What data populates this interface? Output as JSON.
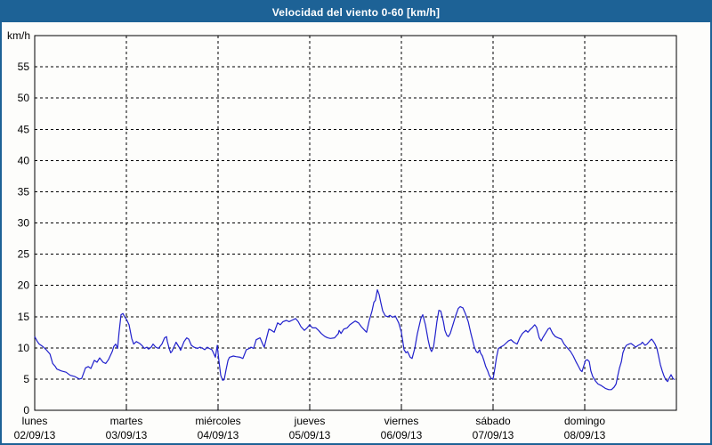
{
  "title": "Velocidad del viento 0-60 [km/h]",
  "colors": {
    "frame_blue": "#1d6296",
    "title_text": "#ffffff",
    "plot_background": "#fdfdfb",
    "grid": "#000000",
    "line_blue": "#2020cc"
  },
  "chart_data": {
    "type": "line",
    "title": "Velocidad del viento 0-60 [km/h]",
    "ylabel_unit": "km/h",
    "ylim": [
      0,
      60
    ],
    "yticks": [
      0,
      5,
      10,
      15,
      20,
      25,
      30,
      35,
      40,
      45,
      50,
      55
    ],
    "grid": "dashed, horizontal at every 5 km/h and vertical at each day boundary",
    "legend_position": "none",
    "x_axis_note": "7 days, x expressed in hours 0-168 starting lunes 02/09/13 00:00",
    "days": [
      {
        "name": "lunes",
        "date": "02/09/13"
      },
      {
        "name": "martes",
        "date": "03/09/13"
      },
      {
        "name": "miércoles",
        "date": "04/09/13"
      },
      {
        "name": "jueves",
        "date": "05/09/13"
      },
      {
        "name": "viernes",
        "date": "06/09/13"
      },
      {
        "name": "sábado",
        "date": "07/09/13"
      },
      {
        "name": "domingo",
        "date": "08/09/13"
      }
    ],
    "series": [
      {
        "name": "Velocidad del viento",
        "color": "#2020cc",
        "points_hours_kmh": [
          [
            0,
            11.8
          ],
          [
            0.7,
            11.0
          ],
          [
            1.2,
            10.6
          ],
          [
            1.9,
            10.3
          ],
          [
            2.3,
            10.1
          ],
          [
            3,
            9.7
          ],
          [
            4,
            9.0
          ],
          [
            4.7,
            7.5
          ],
          [
            5.4,
            7.0
          ],
          [
            5.8,
            6.6
          ],
          [
            7,
            6.3
          ],
          [
            8.2,
            6.1
          ],
          [
            9.3,
            5.6
          ],
          [
            10.5,
            5.4
          ],
          [
            11.7,
            5.0
          ],
          [
            12.3,
            5.1
          ],
          [
            13.3,
            6.8
          ],
          [
            14,
            7.0
          ],
          [
            14.7,
            6.7
          ],
          [
            15.6,
            8.0
          ],
          [
            16.3,
            7.7
          ],
          [
            17,
            8.4
          ],
          [
            17.9,
            7.7
          ],
          [
            18.6,
            7.5
          ],
          [
            19.3,
            8.1
          ],
          [
            20.3,
            9.4
          ],
          [
            20.7,
            10.2
          ],
          [
            21.2,
            10.6
          ],
          [
            21.7,
            9.9
          ],
          [
            22.1,
            12.5
          ],
          [
            22.6,
            15.3
          ],
          [
            23.1,
            15.5
          ],
          [
            23.5,
            15.0
          ],
          [
            24,
            14.6
          ],
          [
            24.7,
            13.7
          ],
          [
            25.4,
            11.5
          ],
          [
            25.9,
            10.6
          ],
          [
            26.6,
            11.0
          ],
          [
            27.5,
            10.7
          ],
          [
            28.2,
            10.3
          ],
          [
            28.7,
            9.9
          ],
          [
            29.4,
            10.1
          ],
          [
            29.8,
            9.8
          ],
          [
            30.5,
            10.1
          ],
          [
            31,
            10.6
          ],
          [
            31.7,
            10.1
          ],
          [
            32.4,
            9.9
          ],
          [
            33.3,
            10.6
          ],
          [
            34,
            11.6
          ],
          [
            34.5,
            11.8
          ],
          [
            34.7,
            11.1
          ],
          [
            35.2,
            9.9
          ],
          [
            35.6,
            9.2
          ],
          [
            35.9,
            9.4
          ],
          [
            36.8,
            10.6
          ],
          [
            37,
            10.9
          ],
          [
            38,
            9.9
          ],
          [
            38.2,
            9.6
          ],
          [
            39.1,
            11.0
          ],
          [
            39.8,
            11.6
          ],
          [
            40.3,
            11.4
          ],
          [
            41,
            10.4
          ],
          [
            41.7,
            10.1
          ],
          [
            42.6,
            9.9
          ],
          [
            43.3,
            10.1
          ],
          [
            44,
            9.9
          ],
          [
            44.5,
            9.7
          ],
          [
            45.2,
            10.1
          ],
          [
            45.7,
            9.9
          ],
          [
            46.4,
            9.7
          ],
          [
            46.8,
            9.2
          ],
          [
            47.3,
            8.5
          ],
          [
            47.8,
            10.4
          ],
          [
            48.2,
            8.0
          ],
          [
            48.7,
            5.6
          ],
          [
            49.2,
            4.8
          ],
          [
            49.6,
            4.9
          ],
          [
            50.1,
            6.5
          ],
          [
            50.6,
            8.0
          ],
          [
            51,
            8.5
          ],
          [
            52,
            8.7
          ],
          [
            52.7,
            8.6
          ],
          [
            53.8,
            8.5
          ],
          [
            54.5,
            8.3
          ],
          [
            55.4,
            9.7
          ],
          [
            56.2,
            9.9
          ],
          [
            56.6,
            10.1
          ],
          [
            57.3,
            9.9
          ],
          [
            58,
            11.3
          ],
          [
            59,
            11.6
          ],
          [
            59.7,
            10.6
          ],
          [
            60.1,
            10.1
          ],
          [
            60.8,
            11.8
          ],
          [
            61.3,
            13.0
          ],
          [
            62,
            12.8
          ],
          [
            62.7,
            12.5
          ],
          [
            63.6,
            14.0
          ],
          [
            64.3,
            13.7
          ],
          [
            65,
            14.2
          ],
          [
            65.9,
            14.4
          ],
          [
            66.6,
            14.2
          ],
          [
            67.3,
            14.4
          ],
          [
            68.3,
            14.7
          ],
          [
            69,
            14.2
          ],
          [
            69.7,
            13.4
          ],
          [
            70.6,
            12.8
          ],
          [
            71.3,
            13.2
          ],
          [
            72,
            13.7
          ],
          [
            72.7,
            13.2
          ],
          [
            73.6,
            13.2
          ],
          [
            74.3,
            12.8
          ],
          [
            75,
            12.3
          ],
          [
            76,
            11.8
          ],
          [
            76.7,
            11.6
          ],
          [
            77.4,
            11.5
          ],
          [
            78.5,
            11.6
          ],
          [
            79.5,
            12.3
          ],
          [
            79.7,
            12.8
          ],
          [
            80.2,
            12.3
          ],
          [
            80.9,
            13.0
          ],
          [
            81.8,
            13.2
          ],
          [
            82.5,
            13.7
          ],
          [
            83.2,
            14.0
          ],
          [
            83.9,
            14.3
          ],
          [
            84.8,
            14.0
          ],
          [
            85.5,
            13.4
          ],
          [
            86.4,
            12.8
          ],
          [
            86.9,
            12.5
          ],
          [
            87.6,
            14.4
          ],
          [
            88.3,
            15.9
          ],
          [
            88.8,
            17.3
          ],
          [
            89.2,
            17.6
          ],
          [
            89.7,
            19.3
          ],
          [
            90.2,
            18.5
          ],
          [
            90.6,
            17.3
          ],
          [
            91.1,
            15.9
          ],
          [
            91.8,
            15.1
          ],
          [
            92.5,
            15.0
          ],
          [
            93,
            15.2
          ],
          [
            93.7,
            14.9
          ],
          [
            94.4,
            15.1
          ],
          [
            94.8,
            14.6
          ],
          [
            95.3,
            14.0
          ],
          [
            96,
            12.5
          ],
          [
            96.7,
            9.7
          ],
          [
            97.2,
            9.2
          ],
          [
            97.6,
            9.4
          ],
          [
            98.3,
            8.5
          ],
          [
            98.8,
            8.3
          ],
          [
            99.5,
            9.9
          ],
          [
            100.2,
            12.3
          ],
          [
            101.1,
            14.7
          ],
          [
            101.6,
            15.3
          ],
          [
            102.3,
            13.7
          ],
          [
            103,
            11.3
          ],
          [
            103.5,
            9.9
          ],
          [
            103.9,
            9.4
          ],
          [
            104.4,
            10.1
          ],
          [
            104.9,
            12.3
          ],
          [
            105.3,
            14.2
          ],
          [
            105.8,
            16.0
          ],
          [
            106.3,
            15.9
          ],
          [
            107,
            14.2
          ],
          [
            107.4,
            12.8
          ],
          [
            107.9,
            12.0
          ],
          [
            108.3,
            11.8
          ],
          [
            108.8,
            12.3
          ],
          [
            109.5,
            13.7
          ],
          [
            110.2,
            15.1
          ],
          [
            110.9,
            16.3
          ],
          [
            111.4,
            16.6
          ],
          [
            112.1,
            16.4
          ],
          [
            112.8,
            15.4
          ],
          [
            113.5,
            14.2
          ],
          [
            114.2,
            12.3
          ],
          [
            115.1,
            10.1
          ],
          [
            115.6,
            9.4
          ],
          [
            116,
            9.2
          ],
          [
            116.5,
            9.7
          ],
          [
            116.7,
            9.2
          ],
          [
            117.2,
            8.7
          ],
          [
            117.6,
            8.0
          ],
          [
            118.1,
            7.0
          ],
          [
            118.6,
            6.3
          ],
          [
            119,
            5.6
          ],
          [
            119.5,
            5.1
          ],
          [
            120,
            5.0
          ],
          [
            120.5,
            6.8
          ],
          [
            120.9,
            8.5
          ],
          [
            121.4,
            9.9
          ],
          [
            121.9,
            10.1
          ],
          [
            122.8,
            10.4
          ],
          [
            124,
            11.1
          ],
          [
            124.7,
            11.3
          ],
          [
            125.4,
            10.9
          ],
          [
            126.3,
            10.6
          ],
          [
            127,
            11.6
          ],
          [
            127.7,
            12.3
          ],
          [
            128.6,
            12.8
          ],
          [
            129.1,
            12.5
          ],
          [
            129.8,
            13.0
          ],
          [
            130.2,
            13.2
          ],
          [
            130.9,
            13.7
          ],
          [
            131.4,
            13.3
          ],
          [
            132.1,
            11.6
          ],
          [
            132.6,
            11.1
          ],
          [
            133,
            11.6
          ],
          [
            133.7,
            12.3
          ],
          [
            134.4,
            13.0
          ],
          [
            134.9,
            13.2
          ],
          [
            135.6,
            12.3
          ],
          [
            136.3,
            11.8
          ],
          [
            137,
            11.6
          ],
          [
            137.9,
            11.4
          ],
          [
            138.6,
            10.6
          ],
          [
            139.3,
            10.1
          ],
          [
            140.3,
            9.4
          ],
          [
            141,
            8.7
          ],
          [
            141.7,
            7.8
          ],
          [
            142.4,
            7.0
          ],
          [
            142.9,
            6.4
          ],
          [
            143.3,
            6.2
          ],
          [
            143.8,
            7.2
          ],
          [
            144.2,
            8.0
          ],
          [
            144.7,
            8.1
          ],
          [
            145.2,
            7.8
          ],
          [
            145.6,
            6.3
          ],
          [
            146.1,
            5.4
          ],
          [
            146.8,
            4.7
          ],
          [
            147.5,
            4.2
          ],
          [
            148.2,
            4.0
          ],
          [
            149.4,
            3.5
          ],
          [
            150.3,
            3.3
          ],
          [
            151,
            3.3
          ],
          [
            151.7,
            3.7
          ],
          [
            152.2,
            4.2
          ],
          [
            152.6,
            5.4
          ],
          [
            153.1,
            6.8
          ],
          [
            153.6,
            7.8
          ],
          [
            154,
            9.2
          ],
          [
            154.5,
            10.0
          ],
          [
            154.9,
            10.4
          ],
          [
            155.6,
            10.6
          ],
          [
            156.1,
            10.7
          ],
          [
            156.8,
            10.4
          ],
          [
            157.3,
            10.1
          ],
          [
            158,
            10.4
          ],
          [
            158.7,
            10.6
          ],
          [
            159.1,
            10.9
          ],
          [
            159.8,
            10.4
          ],
          [
            160.3,
            10.6
          ],
          [
            161,
            11.1
          ],
          [
            161.5,
            11.4
          ],
          [
            161.9,
            11.1
          ],
          [
            162.4,
            10.6
          ],
          [
            162.9,
            9.9
          ],
          [
            163.3,
            8.8
          ],
          [
            163.8,
            7.3
          ],
          [
            164.3,
            6.3
          ],
          [
            164.7,
            5.6
          ],
          [
            165.2,
            4.9
          ],
          [
            165.7,
            4.6
          ],
          [
            166.1,
            5.1
          ],
          [
            166.6,
            5.7
          ],
          [
            167.1,
            5.1
          ],
          [
            167.5,
            4.9
          ]
        ]
      }
    ]
  }
}
